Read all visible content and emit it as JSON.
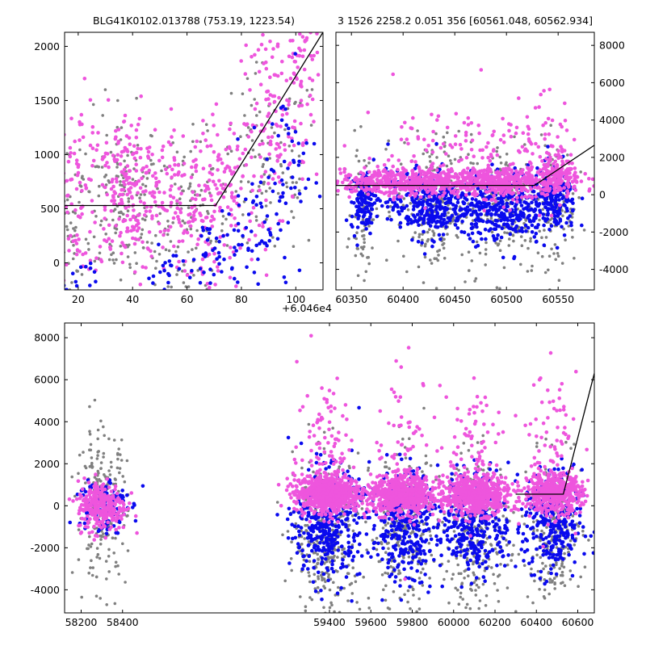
{
  "titles": {
    "left": "BLG41K0102.013788 (753.19, 1223.54)",
    "right": "3 1526 2258.2 0.051 356 [60561.048, 60562.934]"
  },
  "offset_label": "+6.046e4",
  "colors": {
    "gray": "#808080",
    "blue": "#0a0aee",
    "magenta": "#ee55dd",
    "line": "#000000"
  },
  "chart_data": [
    {
      "id": "top-left",
      "type": "scatter",
      "title": "BLG41K0102.013788 (753.19, 1223.54)",
      "x_offset_label": "+6.046e4",
      "xlim": [
        15,
        110
      ],
      "ylim": [
        -250,
        2130
      ],
      "xticks": [
        20,
        40,
        60,
        80,
        100
      ],
      "yticks": [
        0,
        500,
        1000,
        1500,
        2000
      ],
      "ytick_side": "left",
      "model_line": [
        [
          15,
          530
        ],
        [
          70.5,
          530
        ],
        [
          110,
          2130
        ]
      ],
      "series": [
        {
          "color": "gray",
          "clusters": [
            [
              17,
              200,
              3,
              400,
              60
            ],
            [
              35,
              550,
              8,
              420,
              160
            ],
            [
              60,
              300,
              8,
              420,
              120
            ],
            [
              90,
              900,
              10,
              450,
              110
            ]
          ]
        },
        {
          "color": "magenta",
          "clusters": [
            [
              20,
              700,
              4,
              420,
              70
            ],
            [
              38,
              650,
              8,
              380,
              240
            ],
            [
              60,
              500,
              7,
              380,
              140
            ],
            [
              75,
              700,
              6,
              350,
              90
            ],
            [
              92,
              1300,
              6,
              450,
              120
            ],
            [
              103,
              1800,
              4,
              300,
              60
            ]
          ]
        },
        {
          "color": "blue",
          "clusters": [
            [
              20,
              -150,
              4,
              100,
              15
            ],
            [
              55,
              -100,
              5,
              120,
              25
            ],
            [
              72,
              100,
              6,
              200,
              40
            ],
            [
              88,
              300,
              8,
              350,
              60
            ],
            [
              98,
              900,
              6,
              400,
              35
            ]
          ]
        }
      ]
    },
    {
      "id": "top-right",
      "type": "scatter",
      "xlim": [
        60335,
        60585
      ],
      "ylim": [
        -5100,
        8700
      ],
      "xticks": [
        60350,
        60400,
        60450,
        60500,
        60550
      ],
      "yticks": [
        -4000,
        -2000,
        0,
        2000,
        4000,
        6000,
        8000
      ],
      "ytick_side": "right",
      "model_line": [
        [
          60335,
          500
        ],
        [
          60527,
          500
        ],
        [
          60585,
          2650
        ]
      ],
      "series": [
        {
          "color": "gray",
          "clusters": [
            [
              60362,
              -800,
              6,
              1700,
              80
            ],
            [
              60430,
              -600,
              18,
              1900,
              200
            ],
            [
              60500,
              -700,
              18,
              1800,
              180
            ],
            [
              60548,
              -500,
              10,
              1700,
              110
            ]
          ]
        },
        {
          "color": "blue",
          "clusters": [
            [
              60362,
              -300,
              6,
              800,
              130
            ],
            [
              60425,
              -500,
              20,
              900,
              350
            ],
            [
              60495,
              -600,
              20,
              900,
              320
            ],
            [
              60545,
              -400,
              12,
              900,
              200
            ]
          ]
        },
        {
          "color": "magenta",
          "clusters": [
            [
              60400,
              700,
              35,
              350,
              450
            ],
            [
              60500,
              700,
              35,
              350,
              450
            ],
            [
              60550,
              1200,
              8,
              600,
              120
            ],
            [
              60440,
              2200,
              40,
              1400,
              110
            ],
            [
              60520,
              2400,
              30,
              1500,
              80
            ]
          ]
        }
      ]
    },
    {
      "id": "bottom",
      "type": "scatter",
      "xlim": [
        58120,
        60680
      ],
      "ylim": [
        -5100,
        8700
      ],
      "xticks": [
        58200,
        58400,
        59400,
        59600,
        59800,
        60000,
        60200,
        60400,
        60600
      ],
      "yticks": [
        -4000,
        -2000,
        0,
        2000,
        4000,
        6000,
        8000
      ],
      "ytick_side": "left",
      "model_line": [
        [
          60300,
          550
        ],
        [
          60530,
          550
        ],
        [
          60680,
          6300
        ]
      ],
      "series": [
        {
          "color": "gray",
          "clusters": [
            [
              58300,
              0,
              60,
              1800,
              220
            ],
            [
              59390,
              -1500,
              80,
              1900,
              300
            ],
            [
              59760,
              -1300,
              80,
              1800,
              260
            ],
            [
              60110,
              -1300,
              80,
              1800,
              260
            ],
            [
              60480,
              -1200,
              70,
              1700,
              240
            ]
          ]
        },
        {
          "color": "blue",
          "clusters": [
            [
              58300,
              100,
              60,
              700,
              130
            ],
            [
              59390,
              -900,
              80,
              1300,
              380
            ],
            [
              59760,
              -900,
              80,
              1300,
              340
            ],
            [
              60110,
              -800,
              80,
              1200,
              320
            ],
            [
              60480,
              -900,
              70,
              1300,
              300
            ]
          ]
        },
        {
          "color": "magenta",
          "clusters": [
            [
              58300,
              0,
              60,
              600,
              280
            ],
            [
              59390,
              600,
              80,
              450,
              700
            ],
            [
              59760,
              500,
              80,
              450,
              600
            ],
            [
              60110,
              500,
              80,
              450,
              600
            ],
            [
              60480,
              600,
              70,
              450,
              500
            ],
            [
              59390,
              3000,
              70,
              1800,
              90
            ],
            [
              59760,
              2600,
              70,
              1800,
              80
            ],
            [
              60110,
              2500,
              70,
              1700,
              80
            ],
            [
              60480,
              2800,
              60,
              1700,
              80
            ]
          ]
        }
      ]
    }
  ]
}
